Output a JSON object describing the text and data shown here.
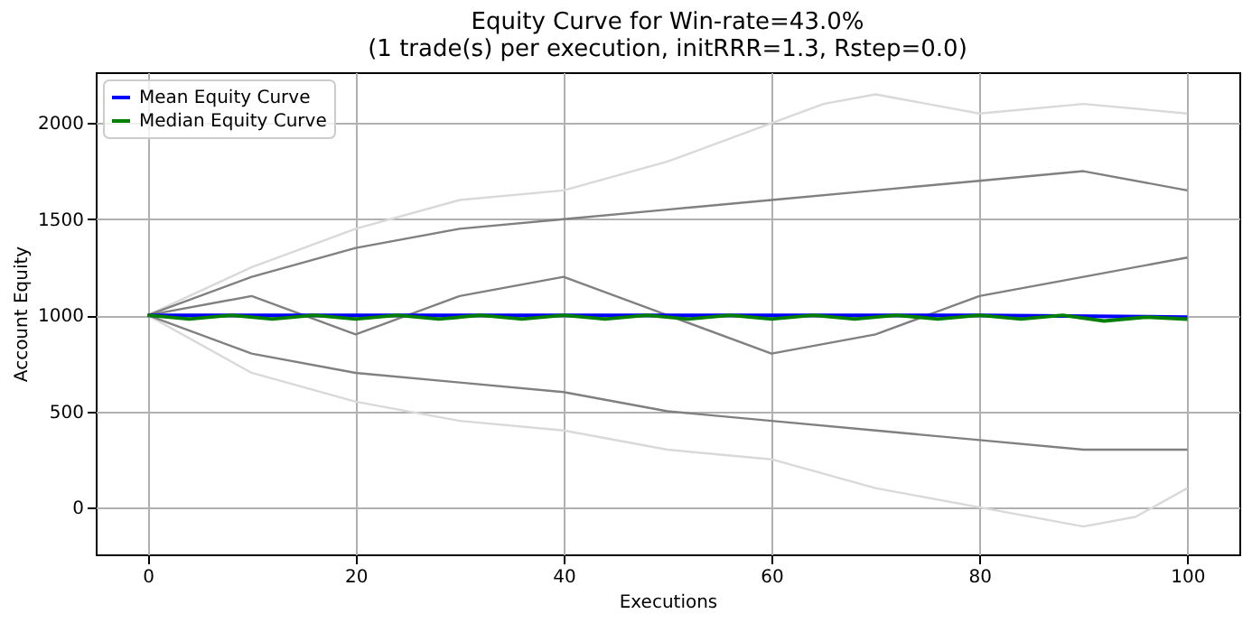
{
  "chart_data": {
    "type": "line",
    "title": "Equity Curve for Win-rate=43.0%",
    "subtitle": "(1 trade(s) per execution, initRRR=1.3, Rstep=0.0)",
    "xlabel": "Executions",
    "ylabel": "Account Equity",
    "xlim": [
      -5,
      105
    ],
    "ylim": [
      -245,
      2265
    ],
    "xticks": [
      0,
      20,
      40,
      60,
      80,
      100
    ],
    "yticks": [
      0,
      500,
      1000,
      1500,
      2000
    ],
    "grid": true,
    "legend": "top left",
    "line_style": "solid",
    "series": [
      {
        "color": "#d9d9d9",
        "x": [
          0,
          10,
          20,
          30,
          40,
          50,
          60,
          65,
          70,
          80,
          90,
          100
        ],
        "values": [
          1000,
          1250,
          1450,
          1600,
          1650,
          1800,
          2000,
          2100,
          2150,
          2050,
          2100,
          2050
        ]
      },
      {
        "color": "#d9d9d9",
        "x": [
          0,
          10,
          20,
          30,
          40,
          50,
          60,
          70,
          80,
          90,
          95,
          100
        ],
        "values": [
          1000,
          700,
          550,
          450,
          400,
          300,
          250,
          100,
          0,
          -100,
          -50,
          100
        ]
      },
      {
        "color": "#808080",
        "x": [
          0,
          10,
          20,
          30,
          40,
          50,
          60,
          70,
          80,
          90,
          100
        ],
        "values": [
          1000,
          1200,
          1350,
          1450,
          1500,
          1550,
          1600,
          1650,
          1700,
          1750,
          1650
        ]
      },
      {
        "color": "#808080",
        "x": [
          0,
          10,
          20,
          30,
          40,
          50,
          60,
          70,
          80,
          90,
          100
        ],
        "values": [
          1000,
          800,
          700,
          650,
          600,
          500,
          450,
          400,
          350,
          300,
          300
        ]
      },
      {
        "color": "#808080",
        "x": [
          0,
          10,
          20,
          30,
          40,
          50,
          60,
          70,
          80,
          90,
          100
        ],
        "values": [
          1000,
          1100,
          900,
          1100,
          1200,
          1000,
          800,
          900,
          1100,
          1200,
          1300
        ]
      },
      {
        "name": "Mean Equity Curve",
        "color": "#0000ff",
        "x": [
          0,
          20,
          40,
          60,
          80,
          100
        ],
        "values": [
          1000,
          1000,
          1000,
          1000,
          1000,
          990
        ]
      },
      {
        "name": "Median Equity Curve",
        "color": "#008000",
        "x": [
          0,
          4,
          8,
          12,
          16,
          20,
          24,
          28,
          32,
          36,
          40,
          44,
          48,
          52,
          56,
          60,
          64,
          68,
          72,
          76,
          80,
          84,
          88,
          92,
          96,
          100
        ],
        "values": [
          1000,
          980,
          1000,
          980,
          1000,
          980,
          1000,
          980,
          1000,
          980,
          1000,
          980,
          1000,
          980,
          1000,
          980,
          1000,
          980,
          1000,
          980,
          1000,
          980,
          1000,
          970,
          990,
          980
        ]
      }
    ]
  }
}
